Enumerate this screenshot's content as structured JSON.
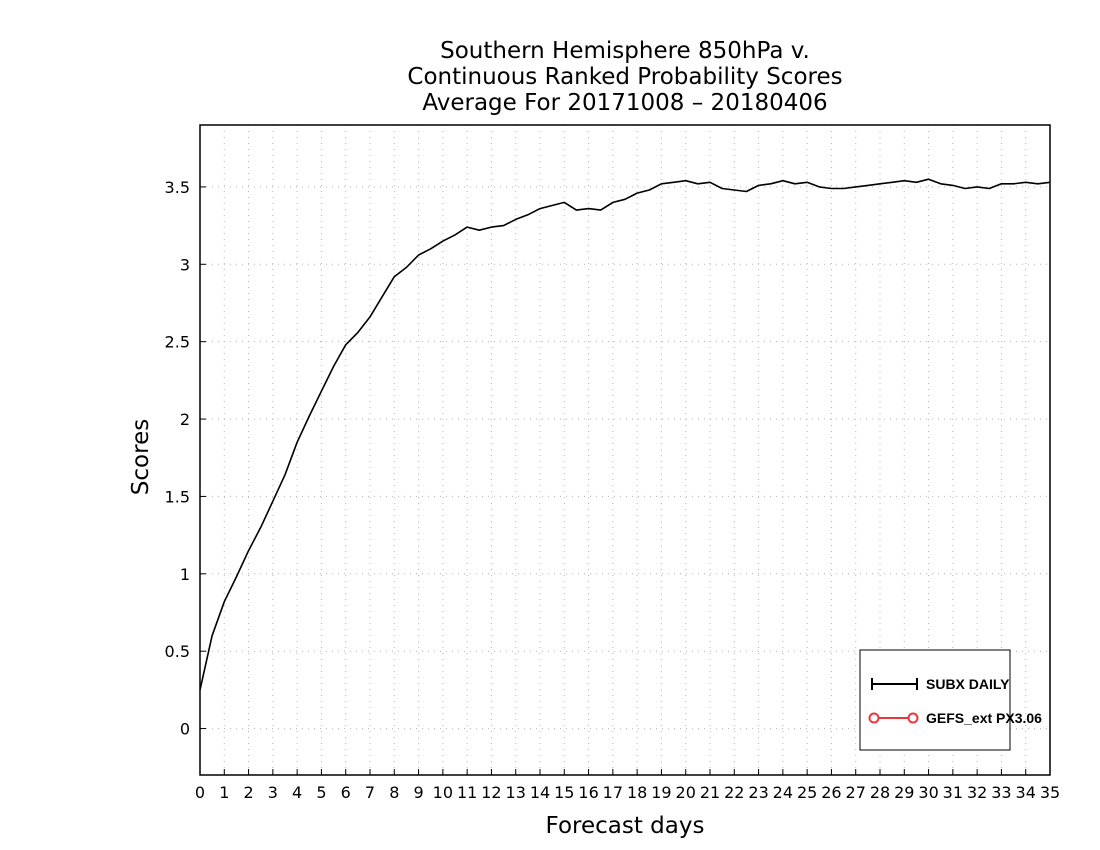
{
  "chart_data": {
    "type": "line",
    "title": [
      "Southern Hemisphere 850hPa v.",
      "Continuous Ranked Probability Scores",
      "Average For 20171008 – 20180406"
    ],
    "xlabel": "Forecast days",
    "ylabel": "Scores",
    "xlim": [
      0,
      35
    ],
    "ylim": [
      -0.3,
      3.9
    ],
    "x_ticks": [
      0,
      1,
      2,
      3,
      4,
      5,
      6,
      7,
      8,
      9,
      10,
      11,
      12,
      13,
      14,
      15,
      16,
      17,
      18,
      19,
      20,
      21,
      22,
      23,
      24,
      25,
      26,
      27,
      28,
      29,
      30,
      31,
      32,
      33,
      34,
      35
    ],
    "y_ticks": [
      0,
      0.5,
      1,
      1.5,
      2,
      2.5,
      3,
      3.5
    ],
    "y_tick_labels": [
      "0",
      "0.5",
      "1",
      "1.5",
      "2",
      "2.5",
      "3",
      "3.5"
    ],
    "grid": true,
    "legend_position": "bottom-right",
    "legend": [
      {
        "label": "SUBX DAILY",
        "color": "#000000",
        "marker": "plus"
      },
      {
        "label": "GEFS_ext PX3.06",
        "color": "#e8383b",
        "marker": "circle"
      }
    ],
    "series": [
      {
        "name": "SUBX DAILY",
        "color": "#000000",
        "x": [
          0,
          0.5,
          1,
          1.5,
          2,
          2.5,
          3,
          3.5,
          4,
          4.5,
          5,
          5.5,
          6,
          6.5,
          7,
          7.5,
          8,
          8.5,
          9,
          9.5,
          10,
          10.5,
          11,
          11.5,
          12,
          12.5,
          13,
          13.5,
          14,
          14.5,
          15,
          15.5,
          16,
          16.5,
          17,
          17.5,
          18,
          18.5,
          19,
          19.5,
          20,
          20.5,
          21,
          21.5,
          22,
          22.5,
          23,
          23.5,
          24,
          24.5,
          25,
          25.5,
          26,
          26.5,
          27,
          27.5,
          28,
          28.5,
          29,
          29.5,
          30,
          30.5,
          31,
          31.5,
          32,
          32.5,
          33,
          33.5,
          34,
          34.5,
          35
        ],
        "y": [
          0.25,
          0.6,
          0.82,
          0.98,
          1.15,
          1.3,
          1.47,
          1.64,
          1.85,
          2.02,
          2.18,
          2.34,
          2.48,
          2.56,
          2.66,
          2.79,
          2.92,
          2.98,
          3.06,
          3.1,
          3.15,
          3.19,
          3.24,
          3.22,
          3.24,
          3.25,
          3.29,
          3.32,
          3.36,
          3.38,
          3.4,
          3.35,
          3.36,
          3.35,
          3.4,
          3.42,
          3.46,
          3.48,
          3.52,
          3.53,
          3.54,
          3.52,
          3.53,
          3.49,
          3.48,
          3.47,
          3.51,
          3.52,
          3.54,
          3.52,
          3.53,
          3.5,
          3.49,
          3.49,
          3.5,
          3.51,
          3.52,
          3.53,
          3.54,
          3.53,
          3.55,
          3.52,
          3.51,
          3.49,
          3.5,
          3.49,
          3.52,
          3.52,
          3.53,
          3.52,
          3.53
        ]
      }
    ]
  }
}
